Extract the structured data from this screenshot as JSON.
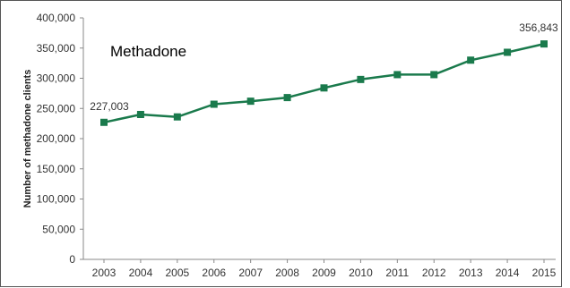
{
  "chart_data": {
    "type": "line",
    "title": "Methadone",
    "xlabel": "",
    "ylabel": "Number of methadone clients",
    "categories": [
      "2003",
      "2004",
      "2005",
      "2006",
      "2007",
      "2008",
      "2009",
      "2010",
      "2011",
      "2012",
      "2013",
      "2014",
      "2015"
    ],
    "series": [
      {
        "values": [
          227003,
          240000,
          236000,
          257000,
          262000,
          268000,
          284000,
          298000,
          306000,
          306000,
          330000,
          343000,
          356843
        ]
      }
    ],
    "annotations": [
      {
        "index": 0,
        "text": "227,003"
      },
      {
        "index": 12,
        "text": "356,843"
      }
    ],
    "yticks": [
      "0",
      "50,000",
      "100,000",
      "150,000",
      "200,000",
      "250,000",
      "300,000",
      "350,000",
      "400,000"
    ],
    "ylim": [
      0,
      400000
    ],
    "grid": false,
    "color": "#1a7a4c"
  }
}
